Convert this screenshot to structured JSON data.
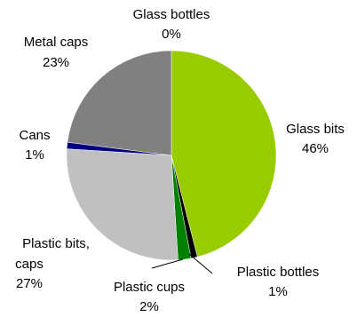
{
  "chart_data": {
    "type": "pie",
    "title": "",
    "slices": [
      {
        "label": "Glass bottles",
        "value": 0,
        "pct_label": "0%",
        "color": "#99cc00"
      },
      {
        "label": "Glass bits",
        "value": 46,
        "pct_label": "46%",
        "color": "#99cc00"
      },
      {
        "label": "Plastic bottles",
        "value": 1,
        "pct_label": "1%",
        "color": "#000000"
      },
      {
        "label": "Plastic cups",
        "value": 2,
        "pct_label": "2%",
        "color": "#008000"
      },
      {
        "label": "Plastic bits, caps",
        "value": 27,
        "pct_label": "27%",
        "color": "#c0c0c0"
      },
      {
        "label": "Cans",
        "value": 1,
        "pct_label": "1%",
        "color": "#000080"
      },
      {
        "label": "Metal caps",
        "value": 23,
        "pct_label": "23%",
        "color": "#808080"
      }
    ],
    "start_angle_deg": 0,
    "direction": "clockwise",
    "legend": "none",
    "data_labels": "category name and percentage"
  }
}
